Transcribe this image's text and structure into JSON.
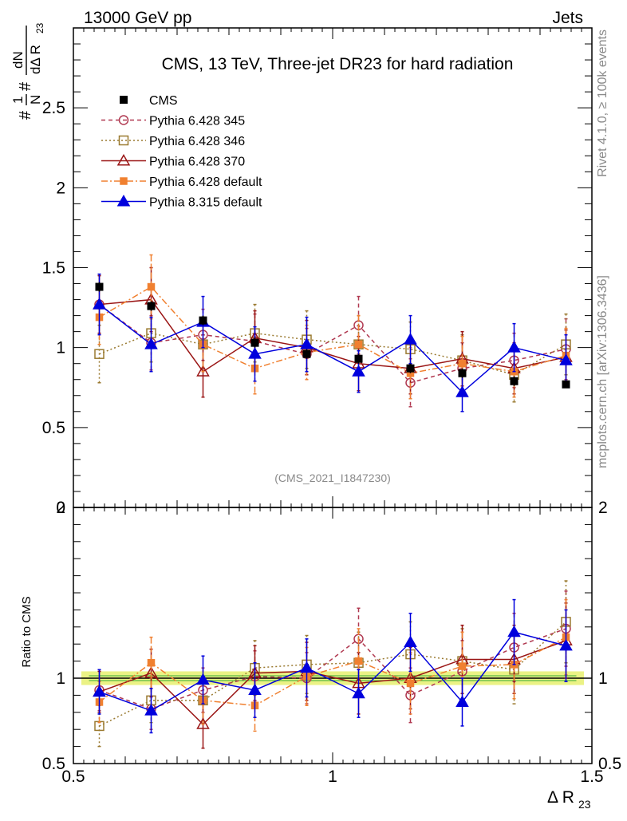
{
  "header": {
    "left": "13000 GeV pp",
    "right": "Jets"
  },
  "side_labels": {
    "rivet": "Rivet 4.1.0, ≥ 100k events",
    "mcplots": "mcplots.cern.ch [arXiv:1306.3436]"
  },
  "y_label_main": {
    "one": "1",
    "n": "N",
    "hash1": "#",
    "hash2": "#",
    "dn": "dN",
    "dd": "dΔ R",
    "sub": "23"
  },
  "y_label_ratio": "Ratio to CMS",
  "x_label": {
    "main": "Δ R",
    "sub": "23"
  },
  "colors": {
    "CMS": "#000000",
    "Pythia 6.428 345": "#b03850",
    "Pythia 6.428 346": "#9a7a30",
    "Pythia 6.428 370": "#9a1515",
    "Pythia 6.428 default": "#f08030",
    "Pythia 8.315 default": "#0000dd",
    "band": "#e8f070"
  },
  "chart_data": [
    {
      "type": "line",
      "panel": "main",
      "title": "CMS, 13 TeV, Three-jet DR23 for hard radiation",
      "watermark": "(CMS_2021_I1847230)",
      "xlabel": "Δ R23",
      "ylabel": "#1/N #dN/dΔ R23",
      "xlim": [
        0.5,
        1.5
      ],
      "ylim": [
        0,
        3
      ],
      "y_ticks": [
        {
          "v": 0,
          "label": "0"
        },
        {
          "v": 0.5,
          "label": "0.5"
        },
        {
          "v": 1,
          "label": "1"
        },
        {
          "v": 1.5,
          "label": "1.5"
        },
        {
          "v": 2,
          "label": "2"
        },
        {
          "v": 2.5,
          "label": "2.5"
        }
      ],
      "x": [
        0.55,
        0.65,
        0.75,
        0.85,
        0.95,
        1.05,
        1.15,
        1.25,
        1.35,
        1.45
      ],
      "series": [
        {
          "name": "CMS",
          "style": "data",
          "values": [
            1.38,
            1.26,
            1.17,
            1.03,
            0.96,
            0.93,
            0.87,
            0.84,
            0.79,
            0.77
          ],
          "errors": [
            0.03,
            0.03,
            0.03,
            0.03,
            0.03,
            0.03,
            0.03,
            0.03,
            0.03,
            0.02
          ]
        },
        {
          "name": "Pythia 6.428 345",
          "style": "open-circle-dashed",
          "values": [
            1.27,
            1.03,
            1.08,
            1.04,
            0.96,
            1.14,
            0.78,
            0.87,
            0.92,
            0.99
          ],
          "errors": [
            0.18,
            0.17,
            0.16,
            0.17,
            0.16,
            0.18,
            0.15,
            0.16,
            0.17,
            0.19
          ]
        },
        {
          "name": "Pythia 6.428 346",
          "style": "open-square-dotted",
          "values": [
            0.96,
            1.09,
            1.02,
            1.09,
            1.05,
            1.02,
            0.99,
            0.92,
            0.83,
            1.02
          ],
          "errors": [
            0.18,
            0.18,
            0.17,
            0.18,
            0.18,
            0.18,
            0.17,
            0.16,
            0.17,
            0.19
          ]
        },
        {
          "name": "Pythia 6.428 370",
          "style": "open-triangle-solid",
          "values": [
            1.27,
            1.3,
            0.85,
            1.06,
            1.0,
            0.9,
            0.87,
            0.93,
            0.87,
            0.94
          ],
          "errors": [
            0.18,
            0.2,
            0.16,
            0.17,
            0.17,
            0.17,
            0.16,
            0.17,
            0.16,
            0.17
          ]
        },
        {
          "name": "Pythia 6.428 default",
          "style": "filled-square-dashdot",
          "values": [
            1.19,
            1.38,
            1.02,
            0.87,
            0.97,
            1.02,
            0.84,
            0.9,
            0.85,
            0.95
          ],
          "errors": [
            0.17,
            0.2,
            0.17,
            0.16,
            0.17,
            0.18,
            0.16,
            0.17,
            0.16,
            0.17
          ]
        },
        {
          "name": "Pythia 8.315 default",
          "style": "filled-triangle-solid",
          "values": [
            1.27,
            1.02,
            1.16,
            0.96,
            1.02,
            0.85,
            1.05,
            0.72,
            1.0,
            0.92
          ],
          "errors": [
            0.19,
            0.17,
            0.16,
            0.17,
            0.17,
            0.13,
            0.15,
            0.12,
            0.15,
            0.16
          ]
        }
      ]
    },
    {
      "type": "line",
      "panel": "ratio",
      "ylabel": "Ratio to CMS",
      "xlabel": "Δ R23",
      "xlim": [
        0.5,
        1.5
      ],
      "ylim": [
        0.5,
        2.0
      ],
      "reference": 1.0,
      "band": [
        0.96,
        1.04
      ],
      "x_ticks": [
        {
          "v": 0.5,
          "label": "0.5"
        },
        {
          "v": 1,
          "label": "1"
        },
        {
          "v": 1.5,
          "label": "1.5"
        }
      ],
      "y_ticks": [
        {
          "v": 0.5,
          "label": "0.5"
        },
        {
          "v": 1,
          "label": "1"
        },
        {
          "v": 2,
          "label": "2"
        }
      ],
      "x": [
        0.55,
        0.65,
        0.75,
        0.85,
        0.95,
        1.05,
        1.15,
        1.25,
        1.35,
        1.45
      ],
      "series": [
        {
          "name": "Pythia 6.428 345",
          "values": [
            0.93,
            0.82,
            0.93,
            1.01,
            1.0,
            1.23,
            0.9,
            1.04,
            1.18,
            1.29
          ],
          "errors": [
            0.12,
            0.12,
            0.13,
            0.15,
            0.15,
            0.18,
            0.16,
            0.18,
            0.2,
            0.22
          ]
        },
        {
          "name": "Pythia 6.428 346",
          "values": [
            0.72,
            0.87,
            0.87,
            1.06,
            1.08,
            1.09,
            1.14,
            1.1,
            1.05,
            1.33
          ],
          "errors": [
            0.12,
            0.13,
            0.14,
            0.16,
            0.17,
            0.18,
            0.19,
            0.19,
            0.2,
            0.24
          ]
        },
        {
          "name": "Pythia 6.428 370",
          "values": [
            0.92,
            1.03,
            0.73,
            1.03,
            1.04,
            0.97,
            1.0,
            1.11,
            1.11,
            1.22
          ],
          "errors": [
            0.12,
            0.14,
            0.14,
            0.16,
            0.17,
            0.18,
            0.18,
            0.2,
            0.2,
            0.22
          ]
        },
        {
          "name": "Pythia 6.428 default",
          "values": [
            0.86,
            1.09,
            0.87,
            0.84,
            1.01,
            1.1,
            0.97,
            1.07,
            1.08,
            1.24
          ],
          "errors": [
            0.12,
            0.15,
            0.14,
            0.15,
            0.17,
            0.19,
            0.18,
            0.2,
            0.2,
            0.22
          ]
        },
        {
          "name": "Pythia 8.315 default",
          "values": [
            0.92,
            0.81,
            0.99,
            0.93,
            1.06,
            0.91,
            1.21,
            0.86,
            1.27,
            1.19
          ],
          "errors": [
            0.13,
            0.13,
            0.14,
            0.16,
            0.17,
            0.14,
            0.17,
            0.14,
            0.19,
            0.21
          ]
        }
      ]
    }
  ]
}
